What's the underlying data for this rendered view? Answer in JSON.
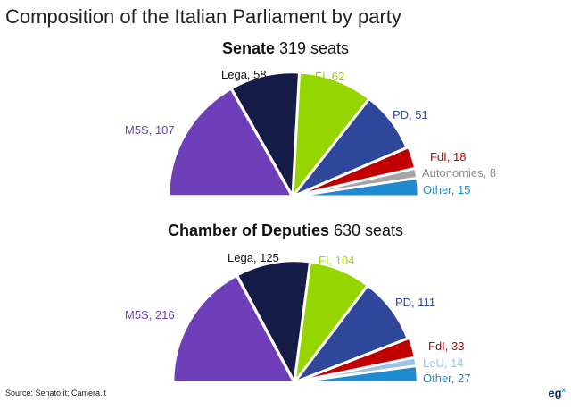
{
  "title": "Composition of the Italian Parliament by party",
  "source": "Source: Senato.it; Camera.it",
  "logo": "eg",
  "chart_data": [
    {
      "type": "pie",
      "variant": "semicircle",
      "title_bold": "Senate",
      "title_rest": " 319 seats",
      "categories": [
        "M5S",
        "Lega",
        "FI",
        "PD",
        "FdI",
        "Autonomies",
        "Other"
      ],
      "values": [
        107,
        58,
        62,
        51,
        18,
        8,
        15
      ],
      "labels": [
        "M5S, 107",
        "Lega, 58",
        "FI, 62",
        "PD, 51",
        "FdI, 18",
        "Autonomies, 8",
        "Other, 15"
      ],
      "colors": [
        "#6f3fba",
        "#151b47",
        "#96d600",
        "#2e479a",
        "#c00000",
        "#a6a6a6",
        "#1f8ad0"
      ]
    },
    {
      "type": "pie",
      "variant": "semicircle",
      "title_bold": "Chamber of Deputies",
      "title_rest": " 630 seats",
      "categories": [
        "M5S",
        "Lega",
        "FI",
        "PD",
        "FdI",
        "LeU",
        "Other"
      ],
      "values": [
        216,
        125,
        104,
        111,
        33,
        14,
        27
      ],
      "labels": [
        "M5S, 216",
        "Lega, 125",
        "FI, 104",
        "PD, 111",
        "FdI, 33",
        "LeU, 14",
        "Other, 27"
      ],
      "colors": [
        "#6f3fba",
        "#151b47",
        "#96d600",
        "#2e479a",
        "#c00000",
        "#9dc3e6",
        "#1f8ad0"
      ]
    }
  ]
}
